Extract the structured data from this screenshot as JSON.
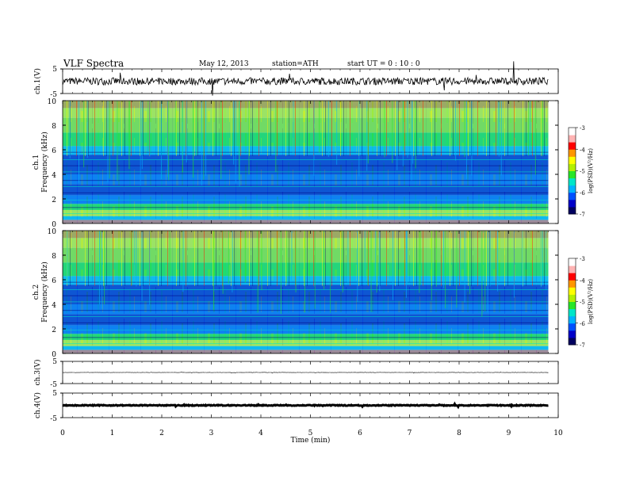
{
  "header": {
    "title": "VLF  Spectra",
    "date": "May 12, 2013",
    "station": "station=ATH",
    "start": "start  UT  =   0  : 10 : 0"
  },
  "chart_data": [
    {
      "id": "ch1-waveform",
      "type": "line",
      "ylabel": "ch.1(V)",
      "yticks": [
        "5",
        "-5"
      ],
      "ylim": [
        -5,
        5
      ],
      "xlim": [
        0,
        10
      ]
    },
    {
      "id": "ch1-spectrogram",
      "type": "heatmap",
      "ylabel": "ch.1",
      "ylabel2": "Frequency  (kHz)",
      "yticks": [
        "0",
        "2",
        "4",
        "6",
        "8",
        "10"
      ],
      "ylim": [
        0,
        10
      ],
      "xlim": [
        0,
        10
      ],
      "data_end_min": 9.8,
      "colorbar": {
        "label": "log(PSD)(V²/Hz)",
        "ticks": [
          "-3",
          "-4",
          "-5",
          "-6",
          "-7"
        ],
        "range": [
          -7,
          -3
        ]
      }
    },
    {
      "id": "ch2-spectrogram",
      "type": "heatmap",
      "ylabel": "ch.2",
      "ylabel2": "Frequency  (kHz)",
      "yticks": [
        "0",
        "2",
        "4",
        "6",
        "8",
        "10"
      ],
      "ylim": [
        0,
        10
      ],
      "xlim": [
        0,
        10
      ],
      "data_end_min": 9.8,
      "colorbar": {
        "label": "log(PSD)(V²/Hz)",
        "ticks": [
          "-3",
          "-4",
          "-5",
          "-6",
          "-7"
        ],
        "range": [
          -7,
          -3
        ]
      }
    },
    {
      "id": "ch3-waveform",
      "type": "line",
      "ylabel": "ch.3(V)",
      "yticks": [
        "5",
        "-5"
      ],
      "ylim": [
        -5,
        5
      ],
      "xlim": [
        0,
        10
      ]
    },
    {
      "id": "ch4-waveform",
      "type": "line",
      "ylabel": "ch.4(V)",
      "yticks": [
        "5",
        "-5"
      ],
      "ylim": [
        -5,
        5
      ],
      "xlim": [
        0,
        10
      ]
    }
  ],
  "xaxis": {
    "label": "Time  (min)",
    "ticks": [
      "0",
      "1",
      "2",
      "3",
      "4",
      "5",
      "6",
      "7",
      "8",
      "9",
      "10"
    ]
  },
  "colors": {
    "colormap": [
      "#000060",
      "#0000c8",
      "#0050ff",
      "#00b4ff",
      "#00e6c8",
      "#28e628",
      "#b4f000",
      "#ffff00",
      "#ff9600",
      "#ff0000",
      "#ffb4b4",
      "#ffffff"
    ]
  }
}
